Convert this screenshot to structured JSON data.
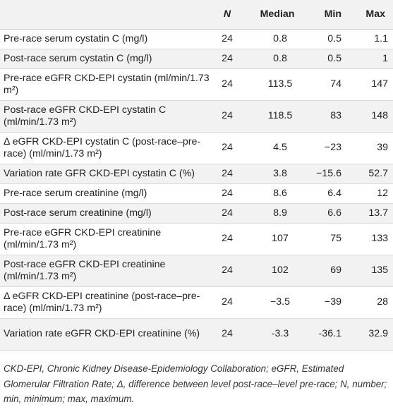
{
  "headers": {
    "label": "",
    "n": "N",
    "median": "Median",
    "min": "Min",
    "max": "Max"
  },
  "rows": [
    {
      "label": "Pre-race serum cystatin C (mg/l)",
      "n": "24",
      "median": "0.8",
      "min": "0.5",
      "max": "1.1"
    },
    {
      "label": "Post-race serum cystatin C (mg/l)",
      "n": "24",
      "median": "0.8",
      "min": "0.5",
      "max": "1"
    },
    {
      "label": "Pre-race eGFR CKD-EPI cystatin (ml/min/1.73 m²)",
      "n": "24",
      "median": "113.5",
      "min": "74",
      "max": "147"
    },
    {
      "label": "Post-race eGFR CKD-EPI cystatin C (ml/min/1.73 m²)",
      "n": "24",
      "median": "118.5",
      "min": "83",
      "max": "148"
    },
    {
      "label": "Δ eGFR CKD-EPI cystatin C (post-race–pre-race) (ml/min/1.73 m²)",
      "n": "24",
      "median": "4.5",
      "min": "−23",
      "max": "39"
    },
    {
      "label": "Variation rate GFR CKD-EPI cystatin C (%)",
      "n": "24",
      "median": "3.8",
      "min": "−15.6",
      "max": "52.7"
    },
    {
      "label": "Pre-race serum creatinine (mg/l)",
      "n": "24",
      "median": "8.6",
      "min": "6.4",
      "max": "12"
    },
    {
      "label": "Post-race serum creatinine (mg/l)",
      "n": "24",
      "median": "8.9",
      "min": "6.6",
      "max": "13.7"
    },
    {
      "label": "Pre-race eGFR CKD-EPI creatinine (ml/min/1.73 m²)",
      "n": "24",
      "median": "107",
      "min": "75",
      "max": "133"
    },
    {
      "label": "Post-race eGFR CKD-EPI creatinine (ml/min/1.73 m²)",
      "n": "24",
      "median": "102",
      "min": "69",
      "max": "135"
    },
    {
      "label": "Δ eGFR CKD-EPI creatinine (post-race–pre-race) (ml/min/1.73 m²)",
      "n": "24",
      "median": "−3.5",
      "min": "−39",
      "max": "28"
    },
    {
      "label": "Variation rate eGFR CKD-EPI creatinine (%)",
      "n": "24",
      "median": "-3.3",
      "min": "-36.1",
      "max": "32.9"
    }
  ],
  "footnote": "CKD-EPI, Chronic Kidney Disease-Epidemiology Collaboration; eGFR, Estimated Glomerular Filtration Rate; Δ, difference between level post-race–level pre-race; N, number; min, minimum; max, maximum."
}
